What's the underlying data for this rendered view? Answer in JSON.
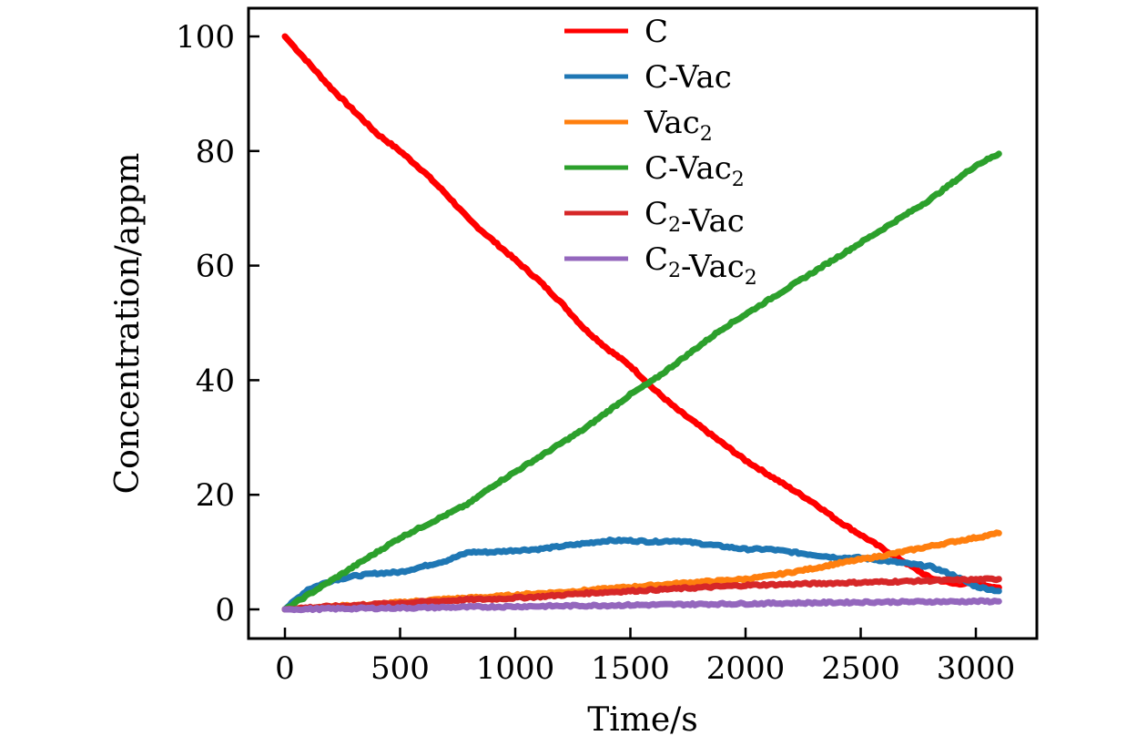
{
  "chart_data": {
    "type": "line",
    "title": "",
    "xlabel": "Time/s",
    "ylabel": "Concentration/appm",
    "xlim": [
      -170,
      3250
    ],
    "ylim": [
      -5,
      105
    ],
    "xticks": [
      0,
      500,
      1000,
      1500,
      2000,
      2500,
      3000
    ],
    "yticks": [
      0,
      20,
      40,
      60,
      80,
      100
    ],
    "xtick_labels": [
      "0",
      "500",
      "1000",
      "1500",
      "2000",
      "2500",
      "3000"
    ],
    "ytick_labels": [
      "0",
      "20",
      "40",
      "60",
      "80",
      "100"
    ],
    "grid": false,
    "legend_position": "top-center",
    "x": [
      0,
      100,
      200,
      300,
      400,
      500,
      600,
      700,
      800,
      900,
      1000,
      1100,
      1200,
      1300,
      1400,
      1500,
      1600,
      1700,
      1800,
      1900,
      2000,
      2100,
      2200,
      2300,
      2400,
      2500,
      2600,
      2700,
      2800,
      2900,
      3000,
      3100
    ],
    "series": [
      {
        "name": "C",
        "label_main": "C",
        "label_sub": "",
        "label_tail": "",
        "label_sub2": "",
        "color": "#ff0000",
        "values": [
          100,
          95.5,
          91,
          87,
          83,
          80,
          76.5,
          72.5,
          68,
          64.5,
          61,
          57.5,
          53.5,
          49,
          45.5,
          42.5,
          38.5,
          35,
          32,
          29,
          26,
          23.5,
          21,
          18.5,
          15.5,
          13,
          10.5,
          8,
          5.5,
          4.5,
          4.5,
          3.8
        ]
      },
      {
        "name": "C-Vac",
        "label_main": "C-Vac",
        "label_sub": "",
        "label_tail": "",
        "label_sub2": "",
        "color": "#1f77b4",
        "values": [
          0,
          3.5,
          5,
          5.8,
          6.3,
          6.5,
          7.5,
          8.5,
          10,
          10,
          10.3,
          10.5,
          11,
          11.5,
          12,
          12,
          11.8,
          12,
          11.5,
          11,
          10.5,
          10.5,
          10,
          9.5,
          9,
          9,
          8.5,
          8,
          7.5,
          6,
          4,
          3.2
        ]
      },
      {
        "name": "Vac2",
        "label_main": "Vac",
        "label_sub": "2",
        "label_tail": "",
        "label_sub2": "",
        "color": "#ff7f0e",
        "values": [
          0,
          0.3,
          0.5,
          0.7,
          0.9,
          1.2,
          1.5,
          1.8,
          2.0,
          2.2,
          2.5,
          2.8,
          3.0,
          3.3,
          3.6,
          3.9,
          4.2,
          4.5,
          4.8,
          5.0,
          5.3,
          5.8,
          6.5,
          7.2,
          8.0,
          8.7,
          9.4,
          10.2,
          11.0,
          11.8,
          12.5,
          13.3
        ]
      },
      {
        "name": "C-Vac2",
        "label_main": "C-Vac",
        "label_sub": "2",
        "label_tail": "",
        "label_sub2": "",
        "color": "#2ca02c",
        "values": [
          0,
          2.5,
          5,
          7.5,
          10,
          12.5,
          14.5,
          16.5,
          18.5,
          21.5,
          24,
          26.5,
          29,
          31.5,
          34.5,
          37.5,
          40,
          43,
          46,
          49,
          51.5,
          54,
          56.5,
          59,
          61.5,
          64,
          66.5,
          69,
          71.5,
          74.5,
          77.5,
          79.5
        ]
      },
      {
        "name": "C2-Vac",
        "label_main": "C",
        "label_sub": "2",
        "label_tail": "-Vac",
        "label_sub2": "",
        "color": "#d62728",
        "values": [
          0,
          0.3,
          0.5,
          0.7,
          0.9,
          1.1,
          1.3,
          1.5,
          1.7,
          1.8,
          2.0,
          2.2,
          2.5,
          2.8,
          3.0,
          3.2,
          3.4,
          3.6,
          3.8,
          4.0,
          4.2,
          4.3,
          4.4,
          4.5,
          4.6,
          4.7,
          4.8,
          4.9,
          5.0,
          5.1,
          5.2,
          5.3
        ]
      },
      {
        "name": "C2-Vac2",
        "label_main": "C",
        "label_sub": "2",
        "label_tail": "-Vac",
        "label_sub2": "2",
        "color": "#9467bd",
        "values": [
          0,
          0.05,
          0.1,
          0.15,
          0.2,
          0.25,
          0.3,
          0.35,
          0.4,
          0.45,
          0.5,
          0.55,
          0.6,
          0.65,
          0.7,
          0.75,
          0.8,
          0.85,
          0.9,
          0.95,
          1.0,
          1.05,
          1.1,
          1.15,
          1.2,
          1.25,
          1.3,
          1.3,
          1.35,
          1.35,
          1.4,
          1.4
        ]
      }
    ]
  }
}
